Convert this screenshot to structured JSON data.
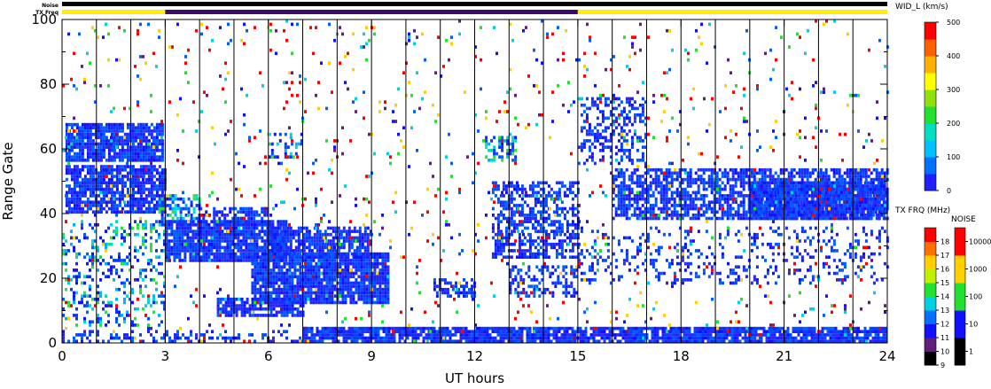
{
  "chart_data": {
    "type": "heatmap",
    "xlabel": "UT hours",
    "ylabel": "Range Gate",
    "xlim": [
      0,
      24
    ],
    "ylim": [
      0,
      100
    ],
    "x_ticks": [
      "0",
      "3",
      "6",
      "9",
      "12",
      "15",
      "18",
      "21",
      "24"
    ],
    "x_minor_step": 1,
    "y_ticks": [
      "0",
      "20",
      "40",
      "60",
      "80",
      "100"
    ],
    "y_minor_step": 10,
    "vertical_lines_every_hours": 1,
    "header_bars": {
      "noise_label": "Noise",
      "txfreq_label": "TX Freq",
      "noise_color": "#000000",
      "txfreq_segments": [
        {
          "start": 0,
          "end": 3,
          "color": "#ffee00"
        },
        {
          "start": 3,
          "end": 15,
          "color": "#3a0a6a"
        },
        {
          "start": 15,
          "end": 24,
          "color": "#ffee00"
        }
      ]
    },
    "colorbar_main": {
      "title": "WID_L (km/s)",
      "min": 0,
      "max": 500,
      "ticks": [
        "0",
        "100",
        "200",
        "300",
        "400",
        "500"
      ],
      "colors": [
        "#2020ff",
        "#0070ff",
        "#00c0ff",
        "#00e0c0",
        "#20e030",
        "#90e010",
        "#ffff00",
        "#ffb000",
        "#ff6000",
        "#ff0000"
      ]
    },
    "colorbar_txfreq": {
      "title": "TX FRQ (MHz)",
      "ticks": [
        "9",
        "10",
        "11",
        "12",
        "13",
        "14",
        "15",
        "16",
        "17",
        "18"
      ],
      "colors": [
        "#000000",
        "#60207a",
        "#1010ff",
        "#0070ff",
        "#00d0e0",
        "#20e030",
        "#c0f000",
        "#ffd000",
        "#ff7000",
        "#ff0000"
      ]
    },
    "colorbar_noise": {
      "title": "NOISE",
      "ticks": [
        "1",
        "10",
        "100",
        "1000",
        "10000"
      ],
      "colors": [
        "#000000",
        "#1010ff",
        "#20e030",
        "#ffd000",
        "#ff0000"
      ]
    },
    "data_regions": [
      {
        "x": [
          0.1,
          2.9
        ],
        "y": [
          56,
          68
        ],
        "density": 0.85,
        "palette": "low"
      },
      {
        "x": [
          0.1,
          3.0
        ],
        "y": [
          40,
          55
        ],
        "density": 0.8,
        "palette": "low"
      },
      {
        "x": [
          2.8,
          4.0
        ],
        "y": [
          36,
          46
        ],
        "density": 0.55,
        "palette": "mixed"
      },
      {
        "x": [
          3.0,
          6.5
        ],
        "y": [
          25,
          38
        ],
        "density": 0.9,
        "palette": "low"
      },
      {
        "x": [
          4.0,
          6.0
        ],
        "y": [
          36,
          42
        ],
        "density": 0.6,
        "palette": "low"
      },
      {
        "x": [
          5.5,
          9.5
        ],
        "y": [
          12,
          28
        ],
        "density": 0.9,
        "palette": "low"
      },
      {
        "x": [
          6.0,
          9.0
        ],
        "y": [
          26,
          36
        ],
        "density": 0.75,
        "palette": "low"
      },
      {
        "x": [
          4.5,
          7.0
        ],
        "y": [
          8,
          14
        ],
        "density": 0.8,
        "palette": "low"
      },
      {
        "x": [
          6.0,
          7.0
        ],
        "y": [
          57,
          65
        ],
        "density": 0.35,
        "palette": "mixed"
      },
      {
        "x": [
          10.8,
          12.0
        ],
        "y": [
          14,
          20
        ],
        "density": 0.55,
        "palette": "low"
      },
      {
        "x": [
          12.3,
          13.2
        ],
        "y": [
          56,
          64
        ],
        "density": 0.5,
        "palette": "mixed"
      },
      {
        "x": [
          12.5,
          15.0
        ],
        "y": [
          26,
          50
        ],
        "density": 0.55,
        "palette": "low"
      },
      {
        "x": [
          13.0,
          15.0
        ],
        "y": [
          14,
          24
        ],
        "density": 0.45,
        "palette": "low"
      },
      {
        "x": [
          15.0,
          17.0
        ],
        "y": [
          55,
          76
        ],
        "density": 0.35,
        "palette": "low"
      },
      {
        "x": [
          16.0,
          24.0
        ],
        "y": [
          38,
          54
        ],
        "density": 0.7,
        "palette": "low"
      },
      {
        "x": [
          20.0,
          24.0
        ],
        "y": [
          38,
          50
        ],
        "density": 0.9,
        "palette": "low"
      },
      {
        "x": [
          15.0,
          24.0
        ],
        "y": [
          18,
          36
        ],
        "density": 0.18,
        "palette": "low"
      },
      {
        "x": [
          7.0,
          24.0
        ],
        "y": [
          0,
          5
        ],
        "density": 0.85,
        "palette": "low"
      },
      {
        "x": [
          0.0,
          7.0
        ],
        "y": [
          0,
          4
        ],
        "density": 0.3,
        "palette": "low"
      },
      {
        "x": [
          0.0,
          3.0
        ],
        "y": [
          5,
          38
        ],
        "density": 0.25,
        "palette": "mixed"
      },
      {
        "x": [
          0.0,
          24.0
        ],
        "y": [
          0,
          100
        ],
        "density": 0.035,
        "palette": "noise"
      }
    ]
  }
}
